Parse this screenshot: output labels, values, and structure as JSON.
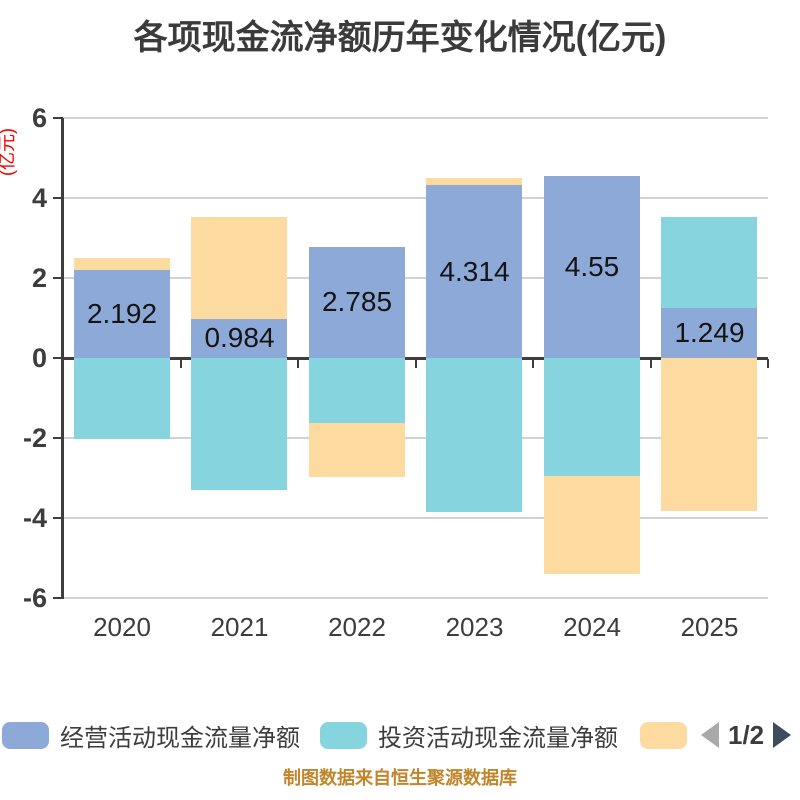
{
  "source_note": "制图数据来自恒生聚源数据库",
  "legend": {
    "pager": {
      "label": "1/2",
      "prev_icon": "left-triangle",
      "next_icon": "right-triangle",
      "prev_color": "#a9a9a9",
      "next_color": "#3c4c5e"
    }
  },
  "chart_data": {
    "type": "bar",
    "stacked": true,
    "title": "各项现金流净额历年变化情况(亿元)",
    "ylabel": "(亿元)",
    "categories": [
      "2020",
      "2021",
      "2022",
      "2023",
      "2024",
      "2025"
    ],
    "series": [
      {
        "name": "经营活动现金流量净额",
        "color": "#8da9d7",
        "values": [
          2.192,
          0.984,
          2.785,
          4.314,
          4.55,
          1.249
        ],
        "data_labels": [
          "2.192",
          "0.984",
          "2.785",
          "4.314",
          "4.55",
          "1.249"
        ]
      },
      {
        "name": "投资活动现金流量净额",
        "color": "#86d4dd",
        "values": [
          -2.03,
          -3.3,
          -1.63,
          -3.85,
          -2.95,
          2.28
        ],
        "values_estimated": true
      },
      {
        "name": "",
        "color": "#fddaa0",
        "values": [
          0.31,
          2.55,
          -1.35,
          0.18,
          -2.45,
          -3.83
        ],
        "values_estimated": true
      }
    ],
    "ylim": [
      -6,
      6
    ],
    "yticks": [
      6,
      4,
      2,
      0,
      -2,
      -4,
      -6
    ],
    "grid": true,
    "legend_position": "bottom"
  }
}
